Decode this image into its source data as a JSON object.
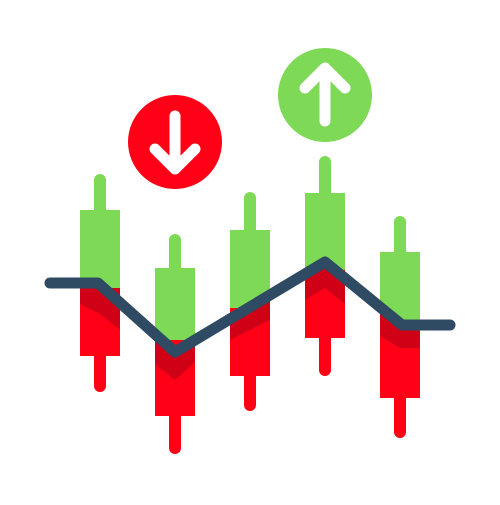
{
  "icon": {
    "name": "stock-market-candlestick-icon",
    "colors": {
      "background": "#ffffff",
      "green_body": "#7ed957",
      "red_body": "#ff0016",
      "red_shadow": "#d00016",
      "trend_line": "#2f4a63",
      "down_badge": "#ff0016",
      "up_badge": "#7ed957",
      "arrow": "#ffffff"
    },
    "badges": [
      {
        "id": "down-arrow-badge",
        "direction": "down"
      },
      {
        "id": "up-arrow-badge",
        "direction": "up"
      }
    ],
    "candles_count": 5
  }
}
